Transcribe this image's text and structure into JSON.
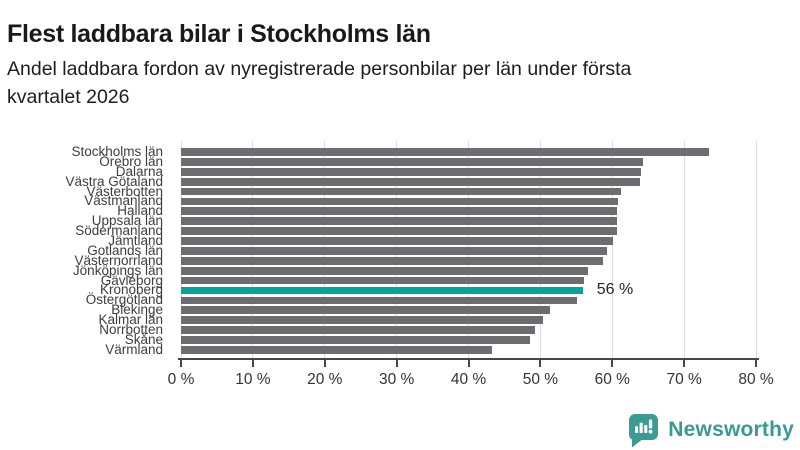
{
  "header": {
    "title": "Flest laddbara bilar i Stockholms län",
    "subtitle": "Andel laddbara fordon av nyregistrerade personbilar per län under första kvartalet 2026",
    "subtitle_lines": [
      "Andel laddbara fordon av nyregistrerade personbilar per län under första",
      "kvartalet 2026"
    ]
  },
  "chart_data": {
    "type": "bar",
    "orientation": "horizontal",
    "title": "Flest laddbara bilar i Stockholms län",
    "subtitle": "Andel laddbara fordon av nyregistrerade personbilar per län under första kvartalet 2026",
    "xlabel": "",
    "ylabel": "",
    "xlim": [
      0,
      80
    ],
    "grid": "vertical",
    "categories": [
      "Stockholms län",
      "Örebro län",
      "Dalarna",
      "Västra Götaland",
      "Västerbotten",
      "Västmanland",
      "Halland",
      "Uppsala län",
      "Södermanland",
      "Jämtland",
      "Gotlands län",
      "Västernorrland",
      "Jönköpings län",
      "Gävleborg",
      "Kronoberg",
      "Östergötland",
      "Blekinge",
      "Kalmar län",
      "Norrbotten",
      "Skåne",
      "Värmland"
    ],
    "values": [
      73.4,
      64.3,
      64.0,
      63.8,
      61.2,
      60.8,
      60.7,
      60.7,
      60.6,
      60.1,
      59.3,
      58.7,
      56.6,
      56.1,
      55.9,
      55.1,
      51.4,
      50.4,
      49.2,
      48.6,
      43.3
    ],
    "unit": "%",
    "bar_color": "#6c6c71",
    "highlight": {
      "category": "Kronoberg",
      "index": 14,
      "color": "#00a59c",
      "annotation": "56 %"
    },
    "xticks": {
      "values": [
        0,
        10,
        20,
        30,
        40,
        50,
        60,
        70,
        80
      ],
      "labels": [
        "0 %",
        "10 %",
        "20 %",
        "30 %",
        "40 %",
        "50 %",
        "60 %",
        "70 %",
        "80 %"
      ]
    }
  },
  "footer": {
    "brand": "Newsworthy",
    "brand_color": "#3a9a92",
    "logo_icon": "bar-chart-speech-bubble-icon"
  },
  "colors": {
    "background": "#ffffff",
    "bar_gray": "#6c6c71",
    "highlight_teal": "#00a59c",
    "gridline": "#dcdcdc",
    "axis": "#45454b",
    "title_text": "#191919",
    "label_text": "#3d3d3d"
  }
}
